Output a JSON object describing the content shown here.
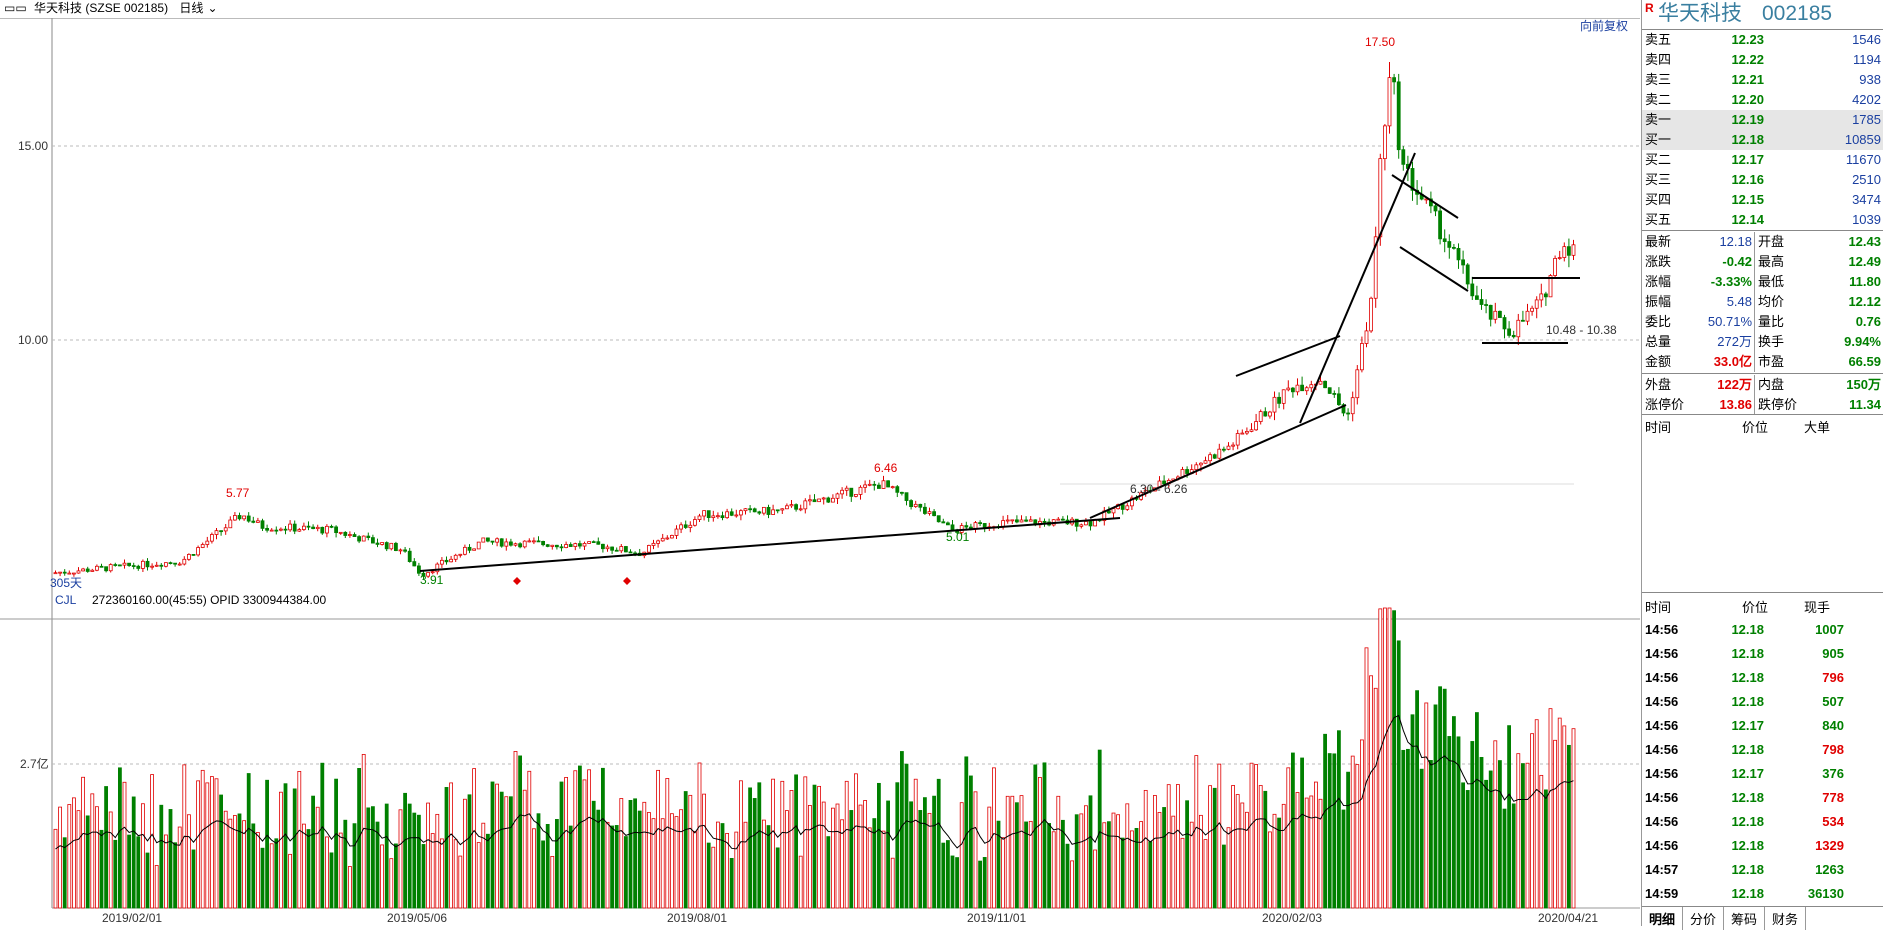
{
  "header": {
    "stock_title": "华天科技 (SZSE 002185)",
    "period": "日线",
    "adjust_link": "向前复权"
  },
  "price_axis": [
    "15.00",
    "10.00"
  ],
  "price_labels": {
    "high_label": "17.50",
    "mid_high": "6.46",
    "left_high": "5.77",
    "low_left": "3.91",
    "low_mid": "5.01",
    "range1": "6.30 - 6.26",
    "range2": "10.48 - 10.38",
    "days": "305天"
  },
  "volume": {
    "indicator": "CJL",
    "info": "272360160.00(45:55)  OPID 3300944384.00",
    "axis_label": "2.7亿"
  },
  "x_axis_dates": [
    "2019/02/01",
    "2019/05/06",
    "2019/08/01",
    "2019/11/01",
    "2020/02/03",
    "2020/04/21"
  ],
  "quote": {
    "name": "华天科技",
    "code": "002185",
    "r_mark": "R",
    "asks": [
      {
        "label": "卖五",
        "price": "12.23",
        "vol": "1546"
      },
      {
        "label": "卖四",
        "price": "12.22",
        "vol": "1194"
      },
      {
        "label": "卖三",
        "price": "12.21",
        "vol": "938"
      },
      {
        "label": "卖二",
        "price": "12.20",
        "vol": "4202"
      },
      {
        "label": "卖一",
        "price": "12.19",
        "vol": "1785"
      }
    ],
    "bids": [
      {
        "label": "买一",
        "price": "12.18",
        "vol": "10859"
      },
      {
        "label": "买二",
        "price": "12.17",
        "vol": "11670"
      },
      {
        "label": "买三",
        "price": "12.16",
        "vol": "2510"
      },
      {
        "label": "买四",
        "price": "12.15",
        "vol": "3474"
      },
      {
        "label": "买五",
        "price": "12.14",
        "vol": "1039"
      }
    ],
    "stats": [
      {
        "l1": "最新",
        "v1": "12.18",
        "l2": "开盘",
        "v2": "12.43"
      },
      {
        "l1": "涨跌",
        "v1": "-0.42",
        "l2": "最高",
        "v2": "12.49"
      },
      {
        "l1": "涨幅",
        "v1": "-3.33%",
        "l2": "最低",
        "v2": "11.80"
      },
      {
        "l1": "振幅",
        "v1": "5.48",
        "l2": "均价",
        "v2": "12.12"
      },
      {
        "l1": "委比",
        "v1": "50.71%",
        "l2": "量比",
        "v2": "0.76"
      },
      {
        "l1": "总量",
        "v1": "272万",
        "l2": "换手",
        "v2": "9.94%"
      },
      {
        "l1": "金额",
        "v1": "33.0亿",
        "l2": "市盈",
        "v2": "66.59"
      }
    ],
    "extra": [
      {
        "l1": "外盘",
        "v1": "122万",
        "l2": "内盘",
        "v2": "150万"
      },
      {
        "l1": "涨停价",
        "v1": "13.86",
        "l2": "跌停价",
        "v2": "11.34"
      }
    ],
    "bigorder_header": {
      "c1": "时间",
      "c2": "价位",
      "c3": "大单"
    },
    "ticks_header": {
      "c1": "时间",
      "c2": "价位",
      "c3": "现手"
    },
    "ticks": [
      {
        "time": "14:56",
        "price": "12.18",
        "vol": "1007",
        "color": "#008000"
      },
      {
        "time": "14:56",
        "price": "12.18",
        "vol": "905",
        "color": "#008000"
      },
      {
        "time": "14:56",
        "price": "12.18",
        "vol": "796",
        "color": "#e00000"
      },
      {
        "time": "14:56",
        "price": "12.18",
        "vol": "507",
        "color": "#008000"
      },
      {
        "time": "14:56",
        "price": "12.17",
        "vol": "840",
        "color": "#008000"
      },
      {
        "time": "14:56",
        "price": "12.18",
        "vol": "798",
        "color": "#e00000"
      },
      {
        "time": "14:56",
        "price": "12.17",
        "vol": "376",
        "color": "#008000"
      },
      {
        "time": "14:56",
        "price": "12.18",
        "vol": "778",
        "color": "#e00000"
      },
      {
        "time": "14:56",
        "price": "12.18",
        "vol": "534",
        "color": "#e00000"
      },
      {
        "time": "14:56",
        "price": "12.18",
        "vol": "1329",
        "color": "#e00000"
      },
      {
        "time": "14:57",
        "price": "12.18",
        "vol": "1263",
        "color": "#008000"
      },
      {
        "time": "14:59",
        "price": "12.18",
        "vol": "36130",
        "color": "#008000"
      }
    ],
    "tabs": [
      "明细",
      "分价",
      "筹码",
      "财务"
    ]
  },
  "colors": {
    "up": "#e00000",
    "down": "#008000",
    "axis": "#1a3fa0"
  }
}
